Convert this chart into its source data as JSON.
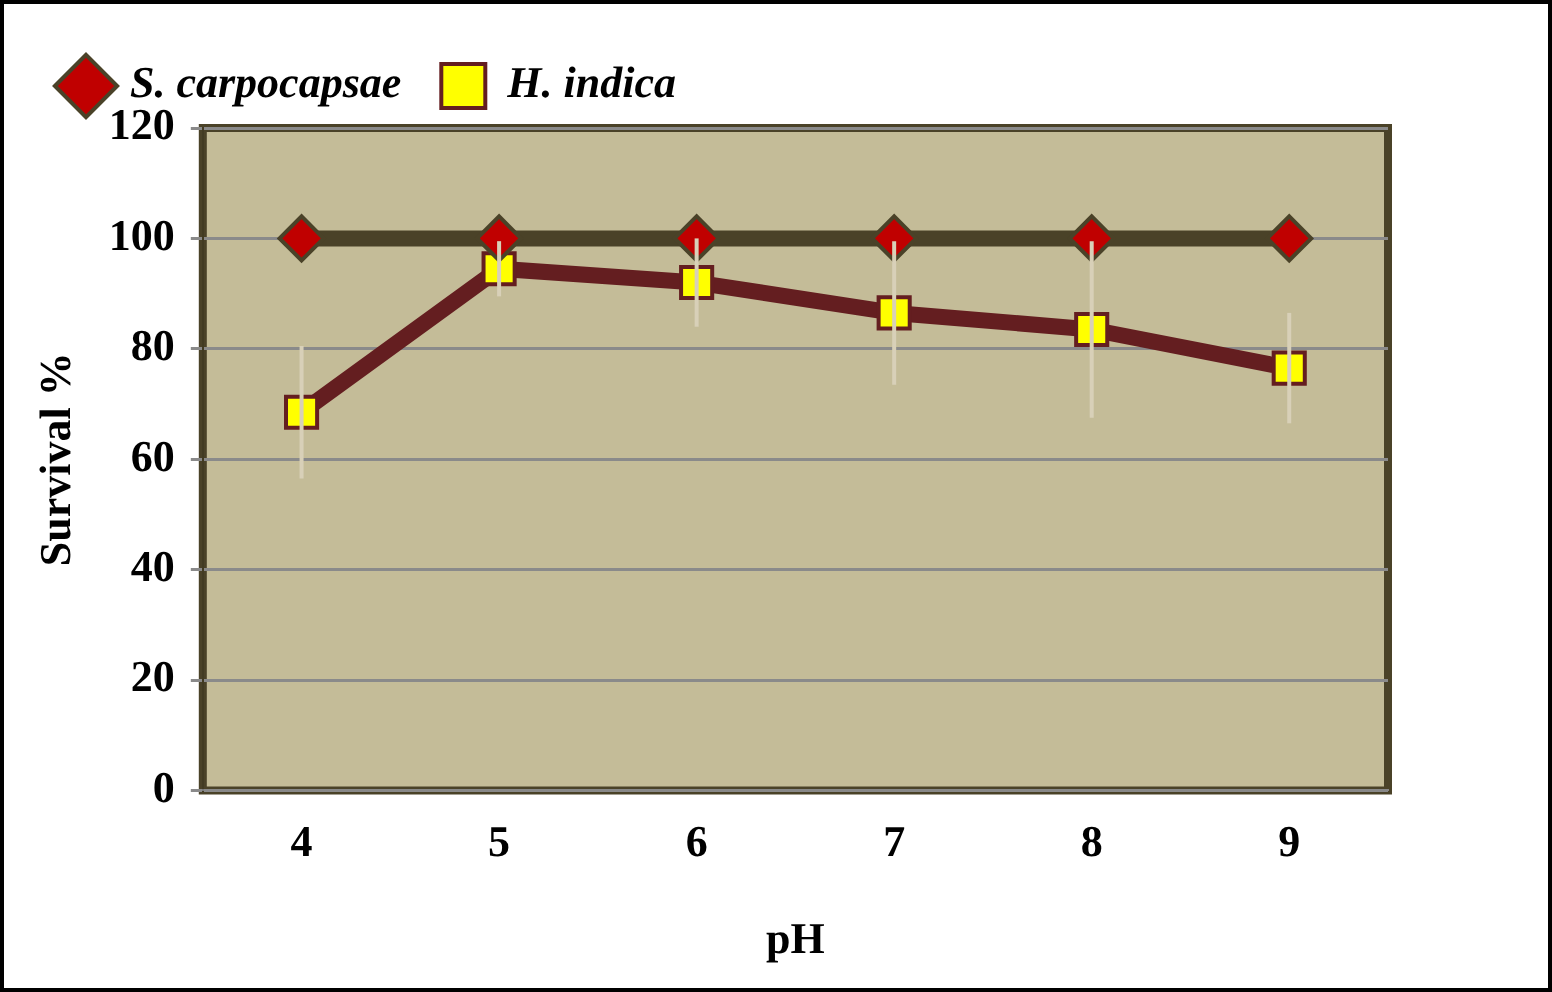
{
  "chart_data": {
    "type": "line",
    "xlabel": "pH",
    "ylabel": "Survival %",
    "categories": [
      "4",
      "5",
      "6",
      "7",
      "8",
      "9"
    ],
    "series": [
      {
        "name": "S. carpocapsae",
        "color": "#4a4228",
        "marker": "diamond",
        "values": [
          100,
          100,
          100,
          100,
          100,
          100
        ]
      },
      {
        "name": "H. indica",
        "color": "#641e20",
        "marker": "square",
        "values": [
          68.5,
          94.5,
          92,
          86.5,
          83.5,
          76.5
        ],
        "errors": [
          12,
          5,
          8,
          13,
          16,
          10
        ]
      }
    ],
    "ylim": [
      0,
      120
    ],
    "yticks": [
      0,
      20,
      40,
      60,
      80,
      100,
      120
    ],
    "grid": "y",
    "legend": "top"
  }
}
